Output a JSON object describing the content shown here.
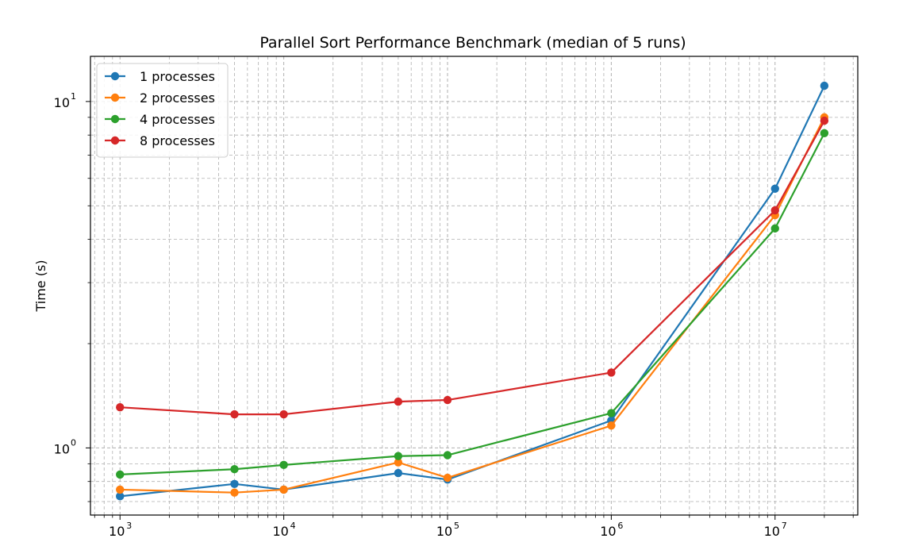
{
  "chart_data": {
    "type": "line",
    "title": "Parallel Sort Performance Benchmark (median of 5 runs)",
    "xlabel": "",
    "ylabel": "Time (s)",
    "xscale": "log",
    "yscale": "log",
    "xlim": [
      660,
      32000000
    ],
    "ylim": [
      0.64,
      13.5
    ],
    "grid": true,
    "legend": "top-left",
    "x": [
      1000,
      5000,
      10000,
      50000,
      100000,
      1000000,
      10000000,
      20000000
    ],
    "x_ticks": [
      {
        "value": 1000,
        "base": "10",
        "exp": "3"
      },
      {
        "value": 10000,
        "base": "10",
        "exp": "4"
      },
      {
        "value": 100000,
        "base": "10",
        "exp": "5"
      },
      {
        "value": 1000000,
        "base": "10",
        "exp": "6"
      },
      {
        "value": 10000000,
        "base": "10",
        "exp": "7"
      }
    ],
    "y_ticks": [
      {
        "value": 1,
        "base": "10",
        "exp": "0"
      },
      {
        "value": 10,
        "base": "10",
        "exp": "1"
      }
    ],
    "series": [
      {
        "name": "1 processes",
        "color": "#1f77b4",
        "values": [
          0.725,
          0.787,
          0.758,
          0.846,
          0.81,
          1.2,
          5.6,
          11.1
        ]
      },
      {
        "name": "2 processes",
        "color": "#ff7f0e",
        "values": [
          0.758,
          0.743,
          0.758,
          0.908,
          0.82,
          1.16,
          4.7,
          9.0
        ]
      },
      {
        "name": "4 processes",
        "color": "#2ca02c",
        "values": [
          0.838,
          0.868,
          0.893,
          0.947,
          0.953,
          1.26,
          4.3,
          8.1
        ]
      },
      {
        "name": "8 processes",
        "color": "#d62728",
        "values": [
          1.31,
          1.25,
          1.25,
          1.36,
          1.375,
          1.65,
          4.85,
          8.8
        ]
      }
    ]
  }
}
